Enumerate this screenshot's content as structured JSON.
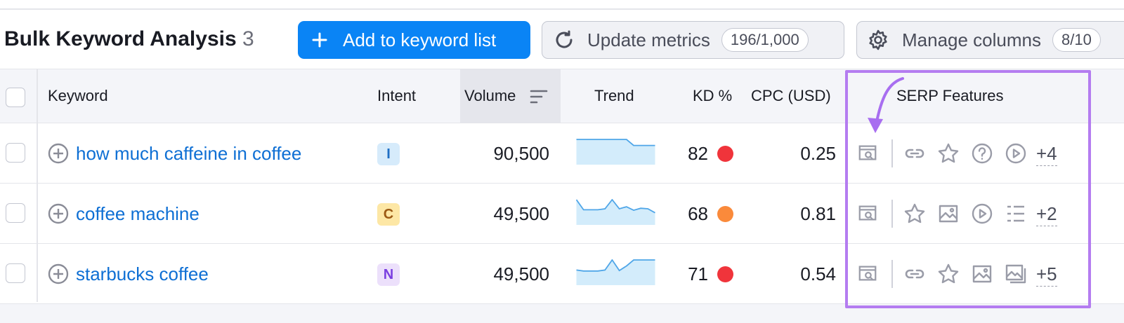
{
  "header": {
    "title": "Bulk Keyword Analysis",
    "count": "3",
    "add_button": "Add to keyword list",
    "update_button": "Update metrics",
    "update_badge": "196/1,000",
    "manage_button": "Manage columns",
    "manage_badge": "8/10"
  },
  "table": {
    "columns": {
      "keyword": "Keyword",
      "intent": "Intent",
      "volume": "Volume",
      "trend": "Trend",
      "kd": "KD %",
      "cpc": "CPC (USD)",
      "serp": "SERP Features"
    },
    "rows": [
      {
        "keyword": "how much caffeine in coffee",
        "intent": "I",
        "intent_color": "#d6ebfb",
        "intent_text_color": "#1f6fc4",
        "volume": "90,500",
        "trend": [
          100,
          100,
          100,
          100,
          100,
          100,
          100,
          100,
          76,
          76,
          76,
          76
        ],
        "kd": "82",
        "kd_color": "#f0343b",
        "cpc": "0.25",
        "serp_more": "+4"
      },
      {
        "keyword": "coffee machine",
        "intent": "C",
        "intent_color": "#fde7a5",
        "intent_text_color": "#9c5a14",
        "volume": "49,500",
        "trend": [
          100,
          60,
          60,
          60,
          64,
          100,
          64,
          72,
          58,
          66,
          64,
          48
        ],
        "kd": "68",
        "kd_color": "#fa8a3b",
        "cpc": "0.81",
        "serp_more": "+2"
      },
      {
        "keyword": "starbucks coffee",
        "intent": "N",
        "intent_color": "#ece0fb",
        "intent_text_color": "#7a3ee0",
        "volume": "49,500",
        "trend": [
          60,
          56,
          56,
          56,
          60,
          100,
          58,
          76,
          100,
          100,
          100,
          100
        ],
        "kd": "71",
        "kd_color": "#f0343b",
        "cpc": "0.54",
        "serp_more": "+5"
      }
    ]
  }
}
